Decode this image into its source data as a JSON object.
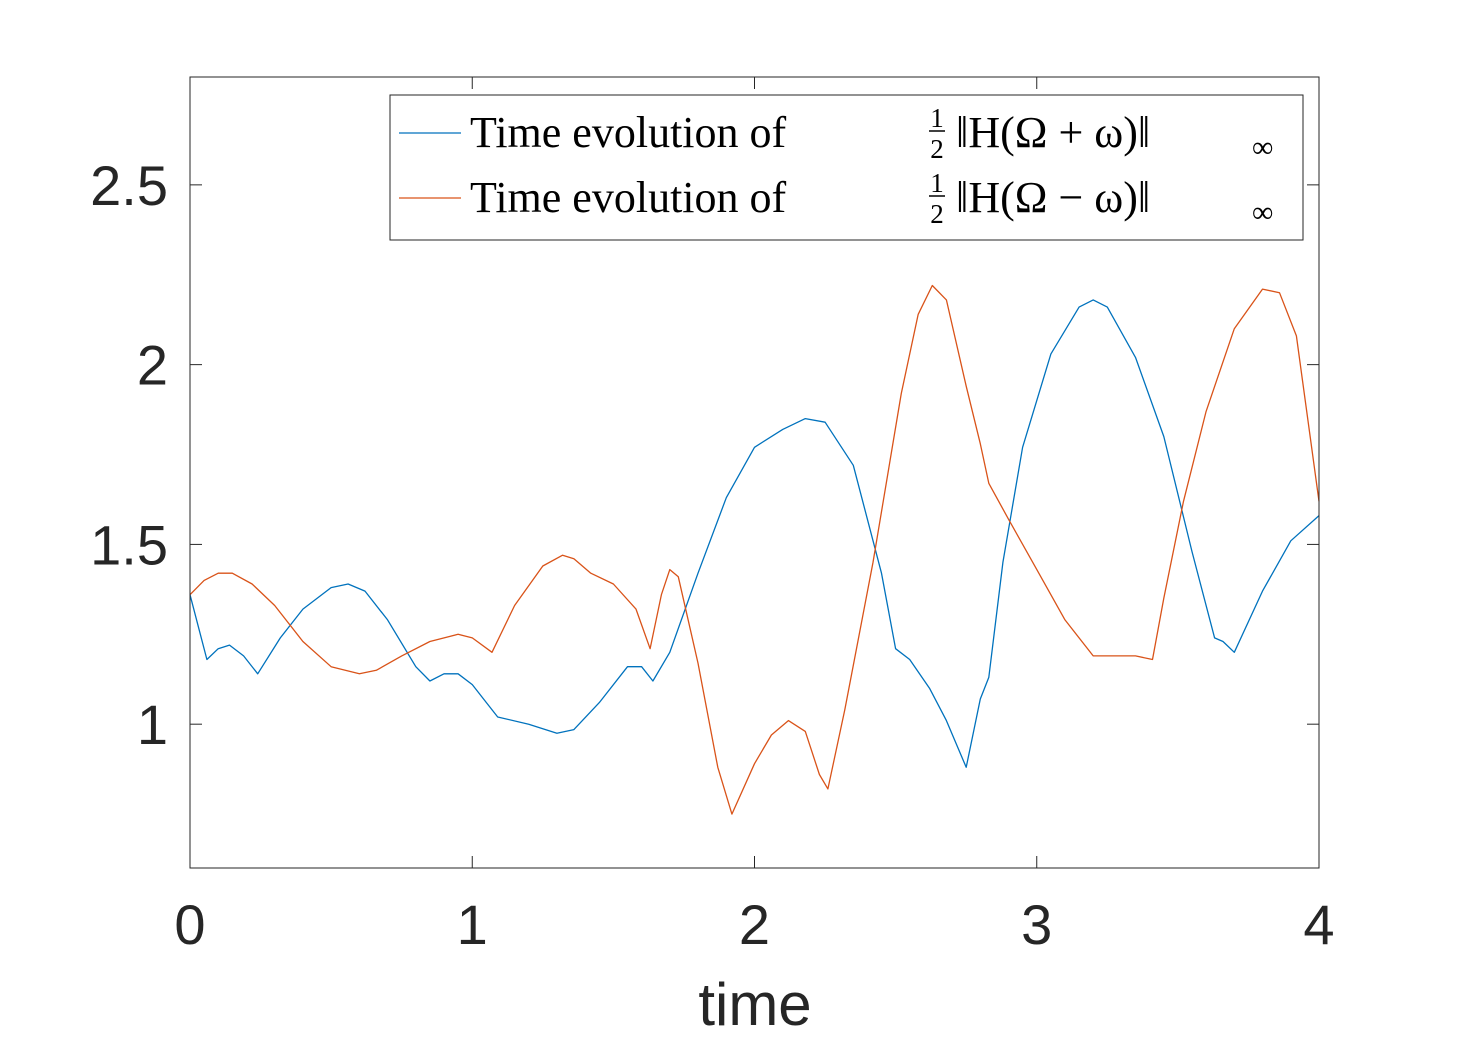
{
  "chart_data": {
    "type": "line",
    "xlabel": "time",
    "ylabel": "",
    "title": "",
    "xlim": [
      0,
      4
    ],
    "ylim": [
      0.6,
      2.8
    ],
    "xticks": [
      0,
      1,
      2,
      3,
      4
    ],
    "xtick_labels": [
      "0",
      "1",
      "2",
      "3",
      "4"
    ],
    "yticks": [
      1,
      1.5,
      2,
      2.5
    ],
    "ytick_labels": [
      "1",
      "1.5",
      "2",
      "2.5"
    ],
    "grid": false,
    "legend_position": "top-right",
    "series": [
      {
        "name": "Time evolution of ½‖H(Ω + ω)‖∞",
        "legend": {
          "prefix": "Time evolution of",
          "num": "1",
          "den": "2",
          "expr": "‖H(Ω + ω)‖",
          "sub": "∞"
        },
        "color": "#0072BD",
        "x": [
          0,
          0.06,
          0.1,
          0.14,
          0.19,
          0.24,
          0.32,
          0.4,
          0.5,
          0.56,
          0.62,
          0.7,
          0.8,
          0.85,
          0.9,
          0.95,
          1.0,
          1.05,
          1.09,
          1.2,
          1.3,
          1.36,
          1.45,
          1.55,
          1.6,
          1.64,
          1.7,
          1.8,
          1.9,
          2.0,
          2.1,
          2.18,
          2.25,
          2.35,
          2.45,
          2.5,
          2.55,
          2.62,
          2.68,
          2.75,
          2.8,
          2.83,
          2.88,
          2.95,
          3.05,
          3.15,
          3.2,
          3.25,
          3.35,
          3.45,
          3.55,
          3.63,
          3.66,
          3.7,
          3.8,
          3.9,
          4.0
        ],
        "y": [
          1.36,
          1.18,
          1.21,
          1.22,
          1.19,
          1.14,
          1.24,
          1.32,
          1.38,
          1.39,
          1.37,
          1.29,
          1.16,
          1.12,
          1.14,
          1.14,
          1.11,
          1.06,
          1.02,
          1.0,
          0.975,
          0.985,
          1.06,
          1.16,
          1.16,
          1.12,
          1.2,
          1.42,
          1.63,
          1.77,
          1.82,
          1.85,
          1.84,
          1.72,
          1.42,
          1.21,
          1.18,
          1.1,
          1.01,
          0.88,
          1.07,
          1.13,
          1.45,
          1.77,
          2.03,
          2.16,
          2.18,
          2.16,
          2.02,
          1.8,
          1.48,
          1.24,
          1.23,
          1.2,
          1.37,
          1.51,
          1.58
        ]
      },
      {
        "name": "Time evolution of ½‖H(Ω − ω)‖∞",
        "legend": {
          "prefix": "Time evolution of",
          "num": "1",
          "den": "2",
          "expr": "‖H(Ω − ω)‖",
          "sub": "∞"
        },
        "color": "#D95319",
        "x": [
          0,
          0.05,
          0.1,
          0.15,
          0.22,
          0.3,
          0.4,
          0.5,
          0.6,
          0.66,
          0.75,
          0.85,
          0.95,
          1.0,
          1.07,
          1.15,
          1.25,
          1.32,
          1.36,
          1.42,
          1.5,
          1.58,
          1.63,
          1.67,
          1.7,
          1.73,
          1.8,
          1.87,
          1.92,
          2.0,
          2.06,
          2.12,
          2.18,
          2.23,
          2.26,
          2.32,
          2.42,
          2.52,
          2.58,
          2.63,
          2.68,
          2.75,
          2.8,
          2.83,
          2.9,
          3.0,
          3.1,
          3.2,
          3.25,
          3.3,
          3.35,
          3.41,
          3.45,
          3.52,
          3.6,
          3.7,
          3.8,
          3.86,
          3.92,
          4.0
        ],
        "y": [
          1.36,
          1.4,
          1.42,
          1.42,
          1.39,
          1.33,
          1.23,
          1.16,
          1.14,
          1.15,
          1.19,
          1.23,
          1.25,
          1.24,
          1.2,
          1.33,
          1.44,
          1.47,
          1.46,
          1.42,
          1.39,
          1.32,
          1.21,
          1.36,
          1.43,
          1.41,
          1.17,
          0.88,
          0.75,
          0.89,
          0.97,
          1.01,
          0.98,
          0.86,
          0.82,
          1.04,
          1.45,
          1.92,
          2.14,
          2.22,
          2.18,
          1.94,
          1.78,
          1.67,
          1.57,
          1.43,
          1.29,
          1.19,
          1.19,
          1.19,
          1.19,
          1.18,
          1.35,
          1.62,
          1.87,
          2.1,
          2.21,
          2.2,
          2.08,
          1.62
        ]
      }
    ]
  }
}
